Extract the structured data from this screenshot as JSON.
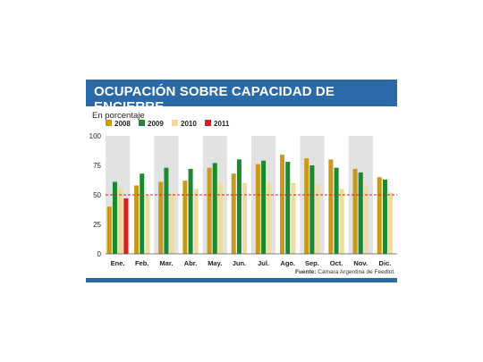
{
  "header": {
    "title": "OCUPACIÓN SOBRE CAPACIDAD DE ENCIERRE"
  },
  "subtitle": "En porcentaje",
  "source": {
    "label": "Fuente:",
    "text": "Cámara Argentina de Feedlot."
  },
  "colors": {
    "accent": "#2a6aa8",
    "s2008": "#c79a1b",
    "s2009": "#1a8a2c",
    "s2010": "#ecdca0",
    "s2011": "#d42020",
    "band": "#e2e2e2",
    "reference": "#d42020"
  },
  "chart_data": {
    "type": "bar",
    "categories": [
      "Ene.",
      "Feb.",
      "Mar.",
      "Abr.",
      "May.",
      "Jun.",
      "Jul.",
      "Ago.",
      "Sep.",
      "Oct.",
      "Nov.",
      "Dic."
    ],
    "series": [
      {
        "name": "2008",
        "values": [
          40,
          58,
          61,
          62,
          73,
          68,
          76,
          84,
          81,
          80,
          72,
          65
        ]
      },
      {
        "name": "2009",
        "values": [
          61,
          68,
          73,
          72,
          77,
          80,
          79,
          78,
          75,
          73,
          69,
          63
        ]
      },
      {
        "name": "2010",
        "values": [
          56,
          50,
          51,
          55,
          60,
          60,
          60,
          60,
          59,
          55,
          57,
          52
        ]
      },
      {
        "name": "2011",
        "values": [
          47,
          null,
          null,
          null,
          null,
          null,
          null,
          null,
          null,
          null,
          null,
          null
        ]
      }
    ],
    "yticks": [
      0,
      25,
      50,
      75,
      100
    ],
    "ylim": [
      0,
      100
    ],
    "reference_line": 50,
    "legend_position": "top-left",
    "grid": false
  }
}
